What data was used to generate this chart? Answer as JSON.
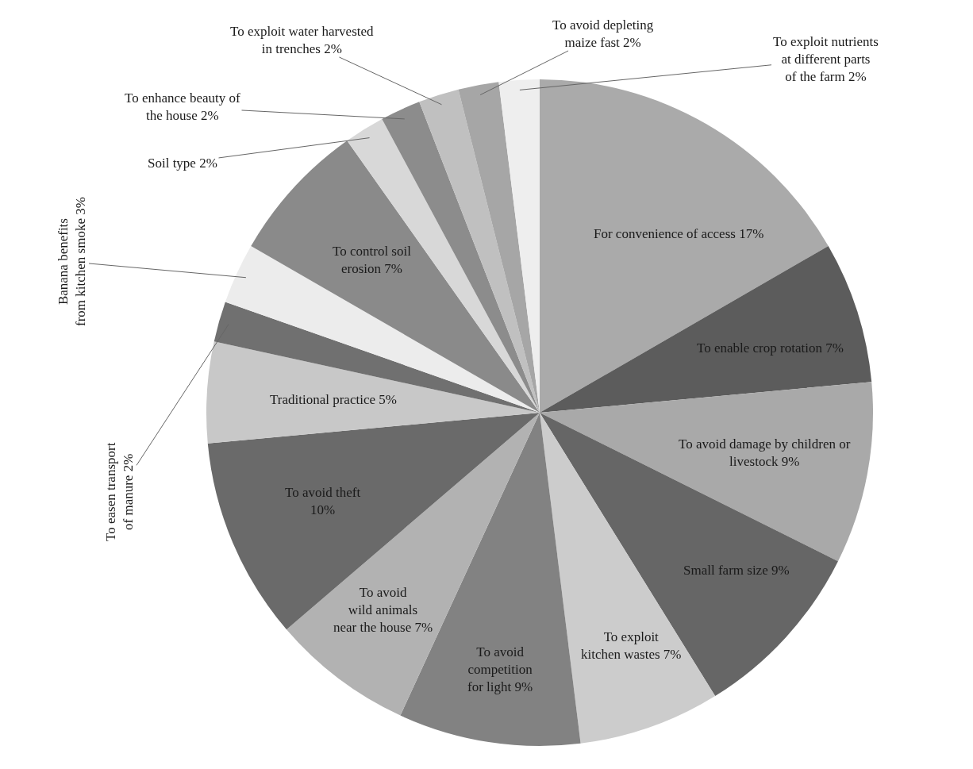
{
  "chart_data": {
    "type": "pie",
    "categories": [
      "For convenience of access",
      "To enable crop rotation",
      "To avoid damage by children or livestock",
      "Small farm size",
      "To exploit kitchen wastes",
      "To avoid competition for light",
      "To avoid wild animals near the house",
      "To avoid theft",
      "Traditional practice",
      "To easen transport of manure",
      "Banana benefits from kitchen smoke",
      "To control soil erosion",
      "Soil type",
      "To enhance beauty of the house",
      "To exploit water harvested in trenches",
      "To avoid depleting maize fast",
      "To exploit nutrients at different parts of the farm"
    ],
    "values": [
      17,
      7,
      9,
      9,
      7,
      9,
      7,
      10,
      5,
      2,
      3,
      7,
      2,
      2,
      2,
      2,
      2
    ],
    "value_labels": [
      "17%",
      "7%",
      "9%",
      "9%",
      "7%",
      "9%",
      "7%",
      "10%",
      "5%",
      "2%",
      "3%",
      "7%",
      "2%",
      "2%",
      "2%",
      "2%",
      "2%"
    ],
    "colors": [
      "#aaaaaa",
      "#5c5c5c",
      "#a9a9a9",
      "#666666",
      "#cccccc",
      "#828282",
      "#b2b2b2",
      "#6a6a6a",
      "#c8c8c8",
      "#707070",
      "#ececec",
      "#8a8a8a",
      "#d8d8d8",
      "#8c8c8c",
      "#c0c0c0",
      "#a6a6a6",
      "#eeeeee"
    ]
  }
}
